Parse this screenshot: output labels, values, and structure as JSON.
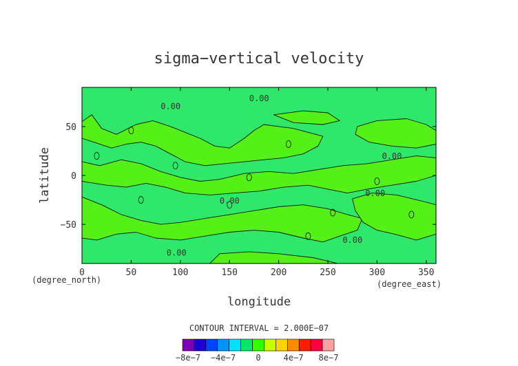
{
  "chart_data": {
    "type": "heatmap",
    "title": "sigma−vertical velocity",
    "xlabel": "longitude",
    "ylabel": "latitude",
    "x_unit": "(degree_east)",
    "y_unit": "(degree_north)",
    "xlim": [
      0,
      360
    ],
    "ylim": [
      -90,
      90
    ],
    "x_ticks": [
      0,
      50,
      100,
      150,
      200,
      250,
      300,
      350
    ],
    "y_ticks": [
      50,
      0,
      -50
    ],
    "grid": false,
    "contour_interval_text": "CONTOUR INTERVAL = 2.000E−07",
    "contour_labels": [
      "0.00",
      "0.00",
      "0.00",
      "0.00",
      "0.00",
      "0.00",
      "0.00"
    ],
    "colorbar": {
      "colors": [
        "#7a00b4",
        "#1c00d8",
        "#0044ff",
        "#0094ff",
        "#00e0ff",
        "#00e86a",
        "#33ff00",
        "#c8ff00",
        "#ffd200",
        "#ff8a00",
        "#ff1a00",
        "#ff0040",
        "#ffa0a0"
      ],
      "tick_labels": [
        "−8e−7",
        "−4e−7",
        "0",
        "4e−7",
        "8e−7"
      ],
      "tick_values": [
        -8e-07,
        -4e-07,
        0,
        4e-07,
        8e-07
      ]
    },
    "base_color": "#2fe86a",
    "positive_color": "#55f017"
  }
}
